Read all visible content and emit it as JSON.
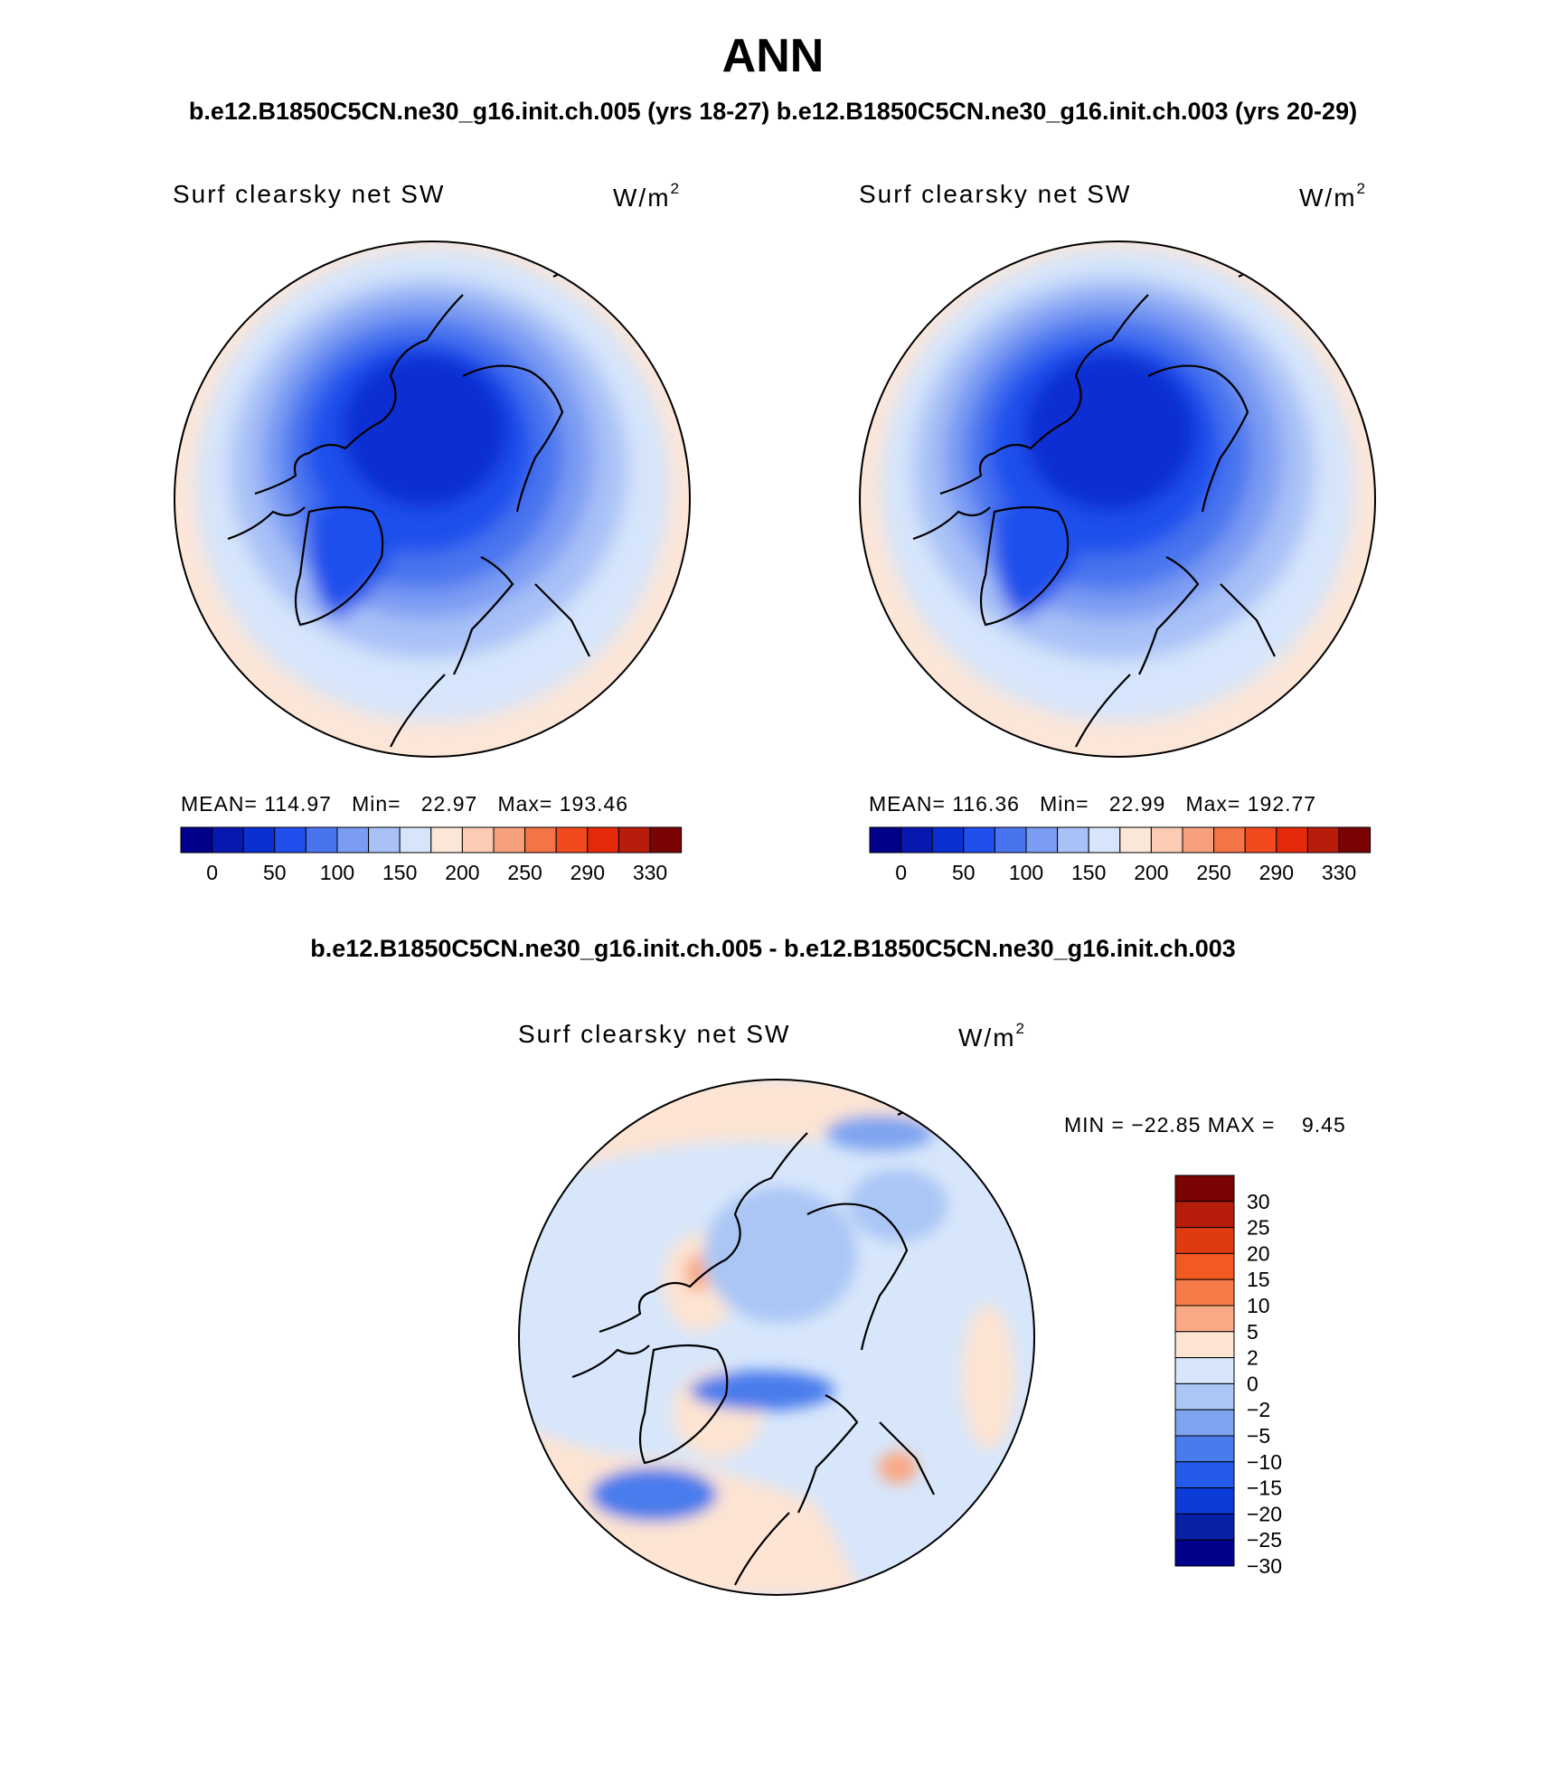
{
  "title": "ANN",
  "subtitle_top": "b.e12.B1850C5CN.ne30_g16.init.ch.005 (yrs 18-27) b.e12.B1850C5CN.ne30_g16.init.ch.003 (yrs 20-29)",
  "subtitle_diff": "b.e12.B1850C5CN.ne30_g16.init.ch.005 - b.e12.B1850C5CN.ne30_g16.init.ch.003",
  "panels": [
    {
      "variable_label": "Surf clearsky net SW",
      "unit_base": "W/m",
      "unit_exp": "2",
      "stats": "MEAN= 114.97   Min=   22.97   Max= 193.46"
    },
    {
      "variable_label": "Surf clearsky net SW",
      "unit_base": "W/m",
      "unit_exp": "2",
      "stats": "MEAN= 116.36   Min=   22.99   Max= 192.77"
    }
  ],
  "diff_panel": {
    "variable_label": "Surf clearsky net SW",
    "unit_base": "W/m",
    "unit_exp": "2",
    "stats": "MIN = −22.85 MAX =    9.45"
  },
  "colorbar_abs": {
    "colors": [
      "#00008a",
      "#0519b0",
      "#0a2fd2",
      "#1f4fec",
      "#4a74ef",
      "#7b9cf3",
      "#a9c1f7",
      "#d6e5fb",
      "#fce6d8",
      "#fbcbb4",
      "#f6a07e",
      "#f47447",
      "#f04a1e",
      "#e42a0a",
      "#b81d0b",
      "#7a0403"
    ],
    "tick_labels": [
      "0",
      "50",
      "100",
      "150",
      "200",
      "250",
      "290",
      "330"
    ]
  },
  "colorbar_diff": {
    "colors_top_to_bottom": [
      "#7a0403",
      "#b81d0b",
      "#e03a10",
      "#f25a22",
      "#f57c48",
      "#f9a985",
      "#fde4d3",
      "#d7e6fb",
      "#aac6f5",
      "#7ea4f0",
      "#4a7bec",
      "#245be8",
      "#0c3cd7",
      "#0620a6",
      "#00008a"
    ],
    "tick_labels": [
      "30",
      "25",
      "20",
      "15",
      "10",
      "5",
      "2",
      "0",
      "−2",
      "−5",
      "−10",
      "−15",
      "−20",
      "−25",
      "−30"
    ]
  }
}
